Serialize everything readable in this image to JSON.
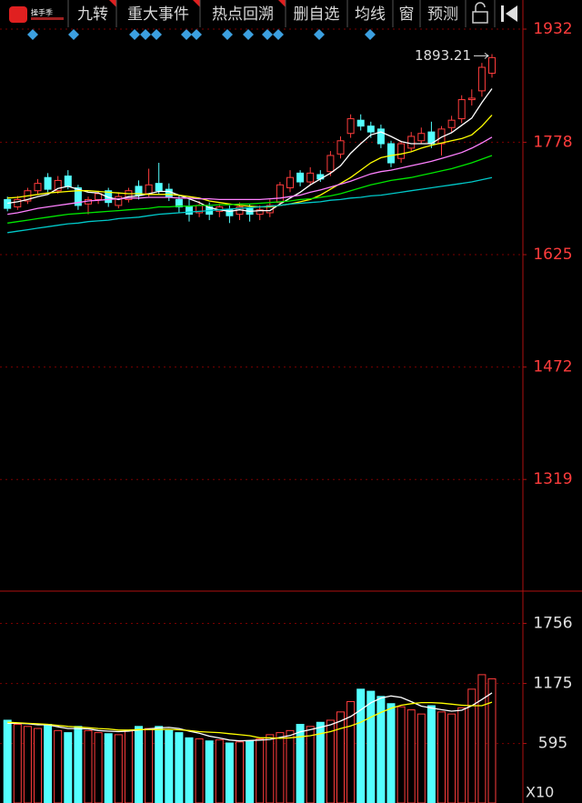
{
  "toolbar": {
    "logo": "操手季",
    "buttons": [
      "九转",
      "重大事件",
      "热点回溯",
      "删自选",
      "均线",
      "窗",
      "预测"
    ]
  },
  "chart_data": [
    {
      "type": "candlestick",
      "up_color": "#ff3c3c",
      "down_color": "#54ffff",
      "open": [
        1700,
        1690,
        1698,
        1712,
        1730,
        1712,
        1732,
        1716,
        1694,
        1700,
        1712,
        1692,
        1700,
        1718,
        1708,
        1722,
        1714,
        1700,
        1690,
        1682,
        1690,
        1684,
        1686,
        1680,
        1688,
        1680,
        1682,
        1696,
        1716,
        1736,
        1724,
        1734,
        1738,
        1762,
        1790,
        1808,
        1800,
        1796,
        1776,
        1756,
        1770,
        1780,
        1792,
        1776,
        1798,
        1810,
        1836,
        1848,
        1872
      ],
      "high": [
        1704,
        1705,
        1716,
        1728,
        1736,
        1732,
        1740,
        1720,
        1704,
        1712,
        1716,
        1710,
        1716,
        1726,
        1742,
        1750,
        1722,
        1706,
        1700,
        1698,
        1696,
        1694,
        1692,
        1696,
        1694,
        1692,
        1700,
        1724,
        1740,
        1740,
        1744,
        1740,
        1766,
        1786,
        1816,
        1816,
        1806,
        1802,
        1780,
        1780,
        1792,
        1798,
        1806,
        1800,
        1814,
        1842,
        1850,
        1886,
        1898
      ],
      "low": [
        1684,
        1686,
        1694,
        1708,
        1710,
        1708,
        1714,
        1686,
        1680,
        1694,
        1690,
        1688,
        1696,
        1700,
        1704,
        1708,
        1698,
        1682,
        1670,
        1676,
        1672,
        1676,
        1668,
        1672,
        1670,
        1672,
        1676,
        1694,
        1710,
        1718,
        1720,
        1724,
        1732,
        1756,
        1784,
        1794,
        1784,
        1770,
        1744,
        1750,
        1766,
        1776,
        1770,
        1760,
        1792,
        1804,
        1828,
        1840,
        1866
      ],
      "close": [
        1688,
        1700,
        1712,
        1722,
        1714,
        1726,
        1718,
        1692,
        1700,
        1708,
        1696,
        1704,
        1712,
        1706,
        1720,
        1712,
        1704,
        1690,
        1680,
        1692,
        1680,
        1690,
        1678,
        1690,
        1680,
        1686,
        1692,
        1720,
        1730,
        1724,
        1736,
        1728,
        1760,
        1780,
        1810,
        1800,
        1792,
        1776,
        1750,
        1776,
        1786,
        1790,
        1776,
        1796,
        1808,
        1836,
        1838,
        1880,
        1893.21
      ],
      "series": [
        {
          "color": "#ffffff",
          "values": [
            1695,
            1697,
            1700,
            1704,
            1707,
            1715,
            1718,
            1714,
            1710,
            1709,
            1703,
            1700,
            1704,
            1705,
            1708,
            1711,
            1711,
            1706,
            1701,
            1696,
            1689,
            1686,
            1684,
            1686,
            1684,
            1685,
            1685,
            1694,
            1702,
            1710,
            1720,
            1728,
            1736,
            1746,
            1763,
            1776,
            1788,
            1792,
            1786,
            1779,
            1776,
            1776,
            1776,
            1785,
            1791,
            1801,
            1811,
            1832,
            1851
          ]
        },
        {
          "color": "#ffff00",
          "values": [
            1702,
            1703,
            1705,
            1707,
            1709,
            1710,
            1711,
            1712,
            1712,
            1711,
            1710,
            1709,
            1708,
            1708,
            1707,
            1707,
            1707,
            1706,
            1704,
            1702,
            1698,
            1696,
            1694,
            1692,
            1691,
            1690,
            1690,
            1692,
            1694,
            1697,
            1700,
            1706,
            1714,
            1722,
            1730,
            1740,
            1750,
            1757,
            1760,
            1762,
            1765,
            1770,
            1774,
            1777,
            1780,
            1783,
            1788,
            1800,
            1815
          ]
        },
        {
          "color": "#ff80ff",
          "values": [
            1680,
            1682,
            1685,
            1688,
            1690,
            1692,
            1694,
            1696,
            1698,
            1699,
            1700,
            1701,
            1702,
            1702,
            1703,
            1703,
            1703,
            1702,
            1702,
            1701,
            1701,
            1700,
            1700,
            1700,
            1700,
            1700,
            1701,
            1702,
            1704,
            1706,
            1710,
            1713,
            1717,
            1721,
            1725,
            1730,
            1735,
            1738,
            1740,
            1743,
            1746,
            1749,
            1752,
            1756,
            1760,
            1764,
            1770,
            1777,
            1785
          ]
        },
        {
          "color": "#00e600",
          "values": [
            1668,
            1670,
            1672,
            1674,
            1676,
            1678,
            1680,
            1681,
            1682,
            1683,
            1684,
            1685,
            1686,
            1687,
            1688,
            1690,
            1690,
            1691,
            1691,
            1692,
            1692,
            1693,
            1693,
            1694,
            1694,
            1695,
            1696,
            1697,
            1698,
            1700,
            1701,
            1703,
            1705,
            1708,
            1712,
            1716,
            1720,
            1723,
            1726,
            1728,
            1730,
            1733,
            1736,
            1739,
            1742,
            1746,
            1750,
            1755,
            1760
          ]
        },
        {
          "color": "#00c8c8",
          "values": [
            1655,
            1657,
            1659,
            1661,
            1663,
            1665,
            1667,
            1668,
            1670,
            1671,
            1672,
            1674,
            1675,
            1676,
            1678,
            1680,
            1681,
            1682,
            1683,
            1684,
            1685,
            1686,
            1687,
            1688,
            1689,
            1690,
            1691,
            1692,
            1694,
            1695,
            1696,
            1697,
            1699,
            1700,
            1702,
            1703,
            1705,
            1706,
            1708,
            1710,
            1712,
            1714,
            1716,
            1718,
            1720,
            1722,
            1724,
            1727,
            1730
          ]
        }
      ],
      "ylim": [
        1167,
        1934.5
      ],
      "yticks": [
        1319,
        1472,
        1625,
        1778,
        1932
      ],
      "grid": true
    },
    {
      "type": "bar",
      "values": [
        820,
        780,
        760,
        740,
        780,
        720,
        700,
        760,
        720,
        700,
        690,
        680,
        720,
        760,
        740,
        760,
        720,
        700,
        650,
        640,
        620,
        630,
        600,
        610,
        620,
        640,
        680,
        700,
        720,
        780,
        760,
        800,
        820,
        900,
        1000,
        1120,
        1100,
        1050,
        980,
        950,
        920,
        880,
        960,
        900,
        880,
        940,
        1120,
        1260,
        1220
      ],
      "series": [
        {
          "color": "#ffffff",
          "values": [
            790,
            790,
            785,
            776,
            776,
            756,
            740,
            740,
            736,
            720,
            714,
            710,
            714,
            726,
            736,
            746,
            750,
            740,
            714,
            694,
            666,
            648,
            628,
            620,
            624,
            628,
            634,
            654,
            672,
            708,
            728,
            752,
            776,
            812,
            856,
            920,
            988,
            1034,
            1054,
            1040,
            1000,
            956,
            938,
            922,
            908,
            916,
            960,
            1020,
            1084
          ]
        },
        {
          "color": "#ffff00",
          "values": [
            800,
            795,
            790,
            785,
            780,
            770,
            760,
            755,
            748,
            740,
            735,
            725,
            725,
            730,
            728,
            730,
            732,
            727,
            720,
            710,
            705,
            700,
            690,
            680,
            670,
            650,
            650,
            645,
            650,
            660,
            670,
            690,
            710,
            740,
            765,
            800,
            850,
            895,
            935,
            965,
            980,
            990,
            990,
            985,
            975,
            965,
            960,
            960,
            995
          ]
        }
      ],
      "unit_label": "X10",
      "ylim": [
        20,
        2050
      ],
      "yticks": [
        595,
        1175,
        1756
      ],
      "grid": true
    }
  ]
}
